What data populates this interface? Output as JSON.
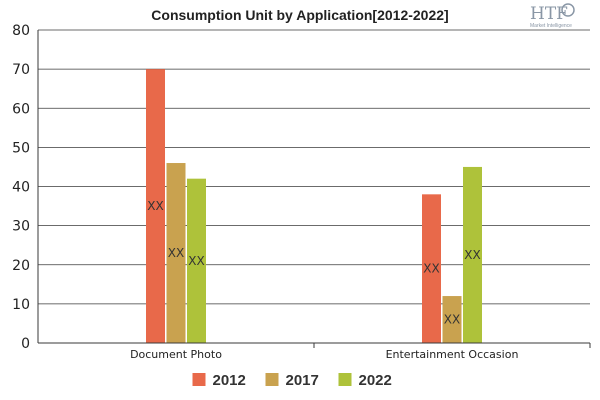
{
  "chart_data": {
    "type": "bar",
    "title": "Consumption Unit by  Application[2012-2022]",
    "categories": [
      "Document Photo",
      "Entertainment Occasion"
    ],
    "series": [
      {
        "name": "2012",
        "color": "#e8694a",
        "values": [
          70,
          38
        ]
      },
      {
        "name": "2017",
        "color": "#c9a24f",
        "values": [
          46,
          12
        ]
      },
      {
        "name": "2022",
        "color": "#aec23a",
        "values": [
          42,
          45
        ]
      }
    ],
    "data_label": "XX",
    "ylim": [
      0,
      80
    ],
    "yticks": [
      0,
      10,
      20,
      30,
      40,
      50,
      60,
      70,
      80
    ],
    "grid": true,
    "legend_position": "bottom-center"
  },
  "logo": {
    "text": "HTF",
    "subtext": "Market Intelligence"
  }
}
